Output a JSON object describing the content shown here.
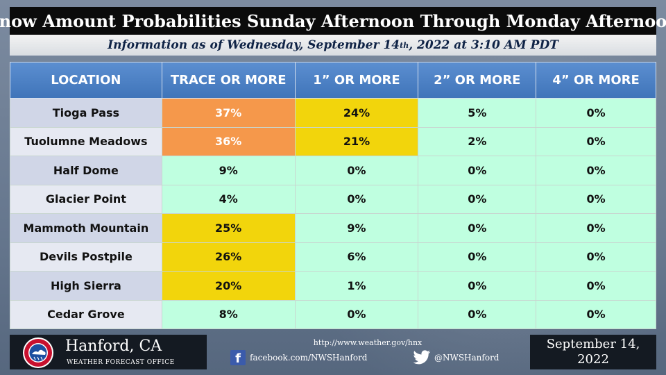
{
  "header": {
    "title": "Snow Amount Probabilities Sunday Afternoon Through Monday Afternoon",
    "subtitle_before": "Information as of Wednesday, September 14",
    "subtitle_sup": "th",
    "subtitle_after": ", 2022 at 3:10 AM PDT"
  },
  "table": {
    "columns": [
      "LOCATION",
      "TRACE OR MORE",
      "1” OR MORE",
      "2” OR MORE",
      "4” OR MORE"
    ],
    "rows": [
      {
        "location": "Tioga Pass",
        "values": [
          "37%",
          "24%",
          "5%",
          "0%"
        ],
        "levels": [
          "high",
          "mid",
          "low",
          "low"
        ]
      },
      {
        "location": "Tuolumne Meadows",
        "values": [
          "36%",
          "21%",
          "2%",
          "0%"
        ],
        "levels": [
          "high",
          "mid",
          "low",
          "low"
        ]
      },
      {
        "location": "Half Dome",
        "values": [
          "9%",
          "0%",
          "0%",
          "0%"
        ],
        "levels": [
          "low",
          "low",
          "low",
          "low"
        ]
      },
      {
        "location": "Glacier Point",
        "values": [
          "4%",
          "0%",
          "0%",
          "0%"
        ],
        "levels": [
          "low",
          "low",
          "low",
          "low"
        ]
      },
      {
        "location": "Mammoth Mountain",
        "values": [
          "25%",
          "9%",
          "0%",
          "0%"
        ],
        "levels": [
          "mid",
          "low",
          "low",
          "low"
        ]
      },
      {
        "location": "Devils Postpile",
        "values": [
          "26%",
          "6%",
          "0%",
          "0%"
        ],
        "levels": [
          "mid",
          "low",
          "low",
          "low"
        ]
      },
      {
        "location": "High Sierra",
        "values": [
          "20%",
          "1%",
          "0%",
          "0%"
        ],
        "levels": [
          "mid",
          "low",
          "low",
          "low"
        ]
      },
      {
        "location": "Cedar Grove",
        "values": [
          "8%",
          "0%",
          "0%",
          "0%"
        ],
        "levels": [
          "low",
          "low",
          "low",
          "low"
        ]
      }
    ]
  },
  "colors": {
    "low": "#bfffe0",
    "mid": "#f2d50c",
    "high": "#f5984b",
    "header_blue": "#4a7fc3"
  },
  "footer": {
    "office_name": "Hanford, CA",
    "office_sub": "WEATHER FORECAST OFFICE",
    "logo_icon": "nws-logo-icon",
    "website": "http://www.weather.gov/hnx",
    "facebook": "facebook.com/NWSHanford",
    "facebook_icon": "facebook-icon",
    "twitter": "@NWSHanford",
    "twitter_icon": "twitter-icon",
    "date_line1": "September 14,",
    "date_line2": "2022"
  }
}
